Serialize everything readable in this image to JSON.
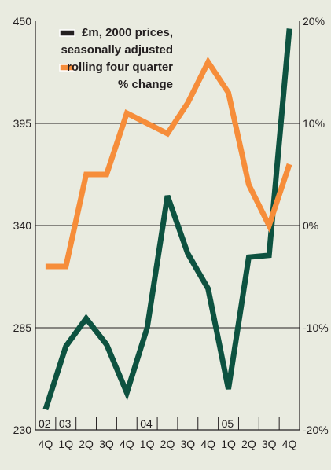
{
  "chart_data": {
    "type": "line",
    "categories": [
      "4Q",
      "1Q",
      "2Q",
      "3Q",
      "4Q",
      "1Q",
      "2Q",
      "3Q",
      "4Q",
      "1Q",
      "2Q",
      "3Q",
      "4Q"
    ],
    "year_labels": [
      {
        "label": "02",
        "start": 0
      },
      {
        "label": "03",
        "start": 1
      },
      {
        "label": "04",
        "start": 5
      },
      {
        "label": "05",
        "start": 9
      }
    ],
    "left_axis": {
      "ticks": [
        "450",
        "395",
        "340",
        "285",
        "230"
      ],
      "ylim": [
        230,
        450
      ]
    },
    "right_axis": {
      "ticks": [
        "20%",
        "10%",
        "0%",
        "-10%",
        "-20%"
      ],
      "ylim": [
        -20,
        20
      ]
    },
    "gridlines": [
      395,
      340,
      285
    ],
    "series": [
      {
        "name": "£m, 2000 prices, seasonally adjusted",
        "axis": "left",
        "color": "#0d5240",
        "values": [
          241,
          275,
          290,
          276,
          250,
          285,
          356,
          325,
          306,
          252,
          323,
          324,
          446
        ]
      },
      {
        "name": "rolling four quarter % change",
        "axis": "right",
        "color": "#f68d3a",
        "values": [
          -4,
          -4,
          5,
          5,
          11,
          10,
          9,
          12,
          16,
          13,
          4,
          0,
          6
        ]
      }
    ],
    "legend": {
      "position": "top-right",
      "lines": [
        {
          "swatch": "#231f20",
          "text": "£m, 2000 prices,"
        },
        {
          "swatch": null,
          "text": "seasonally adjusted"
        },
        {
          "swatch": "#f68d3a",
          "text": "rolling four quarter"
        },
        {
          "swatch": null,
          "text": "% change"
        }
      ]
    },
    "colors": {
      "background": "#e9ebe0",
      "grid": "#231f20"
    }
  }
}
